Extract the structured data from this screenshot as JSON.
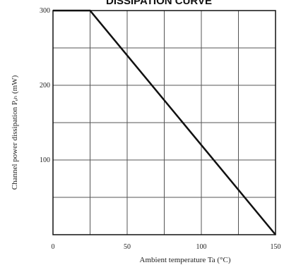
{
  "chart_data": {
    "type": "line",
    "title": "DISSIPATION CURVE",
    "xlabel": "Ambient temperature Ta (°C)",
    "ylabel": "Channel power dissipation  Pₑₕ (mW)",
    "xlim": [
      0,
      150
    ],
    "ylim": [
      0,
      300
    ],
    "xticks": [
      {
        "value": 0,
        "label": "0"
      },
      {
        "value": 50,
        "label": "50"
      },
      {
        "value": 100,
        "label": "100"
      },
      {
        "value": 150,
        "label": "150"
      }
    ],
    "yticks": [
      {
        "value": 100,
        "label": "100"
      },
      {
        "value": 200,
        "label": "200"
      },
      {
        "value": 300,
        "label": "300"
      }
    ],
    "grid": true,
    "grid_step_x": 25,
    "grid_step_y": 50,
    "series": [
      {
        "x": [
          0,
          25,
          150
        ],
        "y": [
          300,
          300,
          0
        ]
      }
    ],
    "colors": {
      "line": "#111111",
      "grid": "#555555",
      "axis": "#111111"
    }
  }
}
